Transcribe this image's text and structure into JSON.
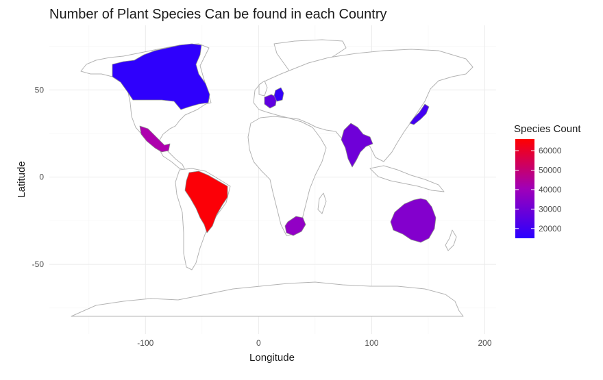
{
  "chart_data": {
    "type": "choropleth-map",
    "title": "Number of Plant Species Can be found in each Country",
    "xlabel": "Longitude",
    "ylabel": "Latitude",
    "xlim": [
      -185,
      210
    ],
    "ylim": [
      -90,
      87
    ],
    "x_ticks": [
      -100,
      0,
      100,
      200
    ],
    "x_tick_labels": [
      "-100",
      "0",
      "100",
      "200"
    ],
    "y_ticks": [
      -50,
      0,
      50
    ],
    "y_tick_labels": [
      "-50",
      "0",
      "50"
    ],
    "grid": true,
    "legend": {
      "title": "Species Count",
      "position": "right",
      "min": 15000,
      "max": 66000,
      "breaks": [
        60000,
        50000,
        40000,
        30000,
        20000
      ],
      "break_labels": [
        "60000",
        "50000",
        "40000",
        "30000",
        "20000"
      ],
      "low_color": "#2a00ff",
      "high_color": "#ff0000"
    },
    "countries": [
      {
        "name": "Brazil",
        "species": 65000
      },
      {
        "name": "Mexico",
        "species": 42000
      },
      {
        "name": "South Africa",
        "species": 36000
      },
      {
        "name": "Australia",
        "species": 33000
      },
      {
        "name": "India",
        "species": 29000
      },
      {
        "name": "France",
        "species": 26000
      },
      {
        "name": "Japan",
        "species": 20000
      },
      {
        "name": "Germany",
        "species": 17000
      },
      {
        "name": "Canada",
        "species": 16000
      }
    ]
  },
  "colors": {
    "background": "#ffffff",
    "land_fill": "#ffffff",
    "land_border": "#b3b3b3",
    "grid": "#ebebeb"
  }
}
